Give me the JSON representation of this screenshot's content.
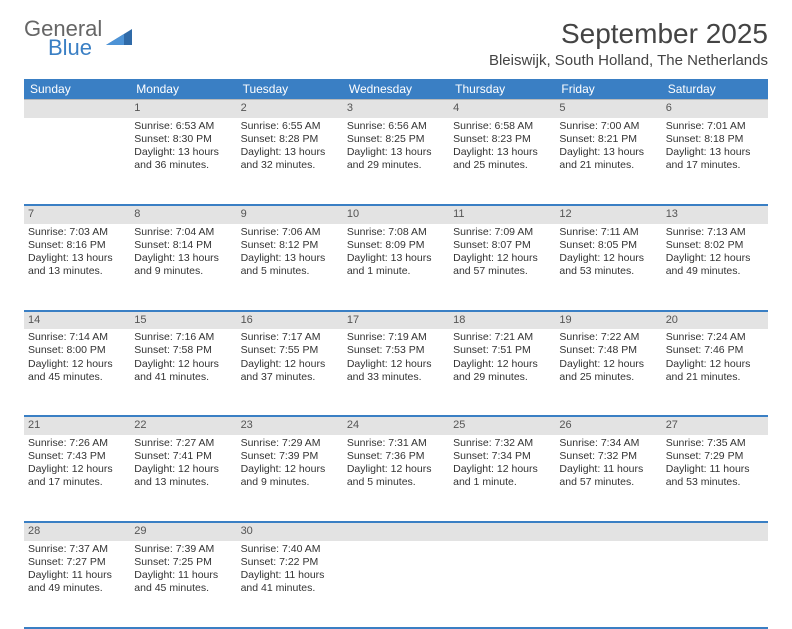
{
  "brand": {
    "line1": "General",
    "line2": "Blue",
    "color_gray": "#666666",
    "color_blue": "#3a7fc4"
  },
  "title": "September 2025",
  "location": "Bleiswijk, South Holland, The Netherlands",
  "theme": {
    "header_bg": "#3a7fc4",
    "header_text": "#ffffff",
    "daynum_bg": "#e3e3e3",
    "separator": "#3a7fc4",
    "page_bg": "#ffffff"
  },
  "day_headers": [
    "Sunday",
    "Monday",
    "Tuesday",
    "Wednesday",
    "Thursday",
    "Friday",
    "Saturday"
  ],
  "weeks": [
    {
      "nums": [
        "",
        "1",
        "2",
        "3",
        "4",
        "5",
        "6"
      ],
      "cells": [
        {},
        {
          "sunrise": "Sunrise: 6:53 AM",
          "sunset": "Sunset: 8:30 PM",
          "daylight": "Daylight: 13 hours and 36 minutes."
        },
        {
          "sunrise": "Sunrise: 6:55 AM",
          "sunset": "Sunset: 8:28 PM",
          "daylight": "Daylight: 13 hours and 32 minutes."
        },
        {
          "sunrise": "Sunrise: 6:56 AM",
          "sunset": "Sunset: 8:25 PM",
          "daylight": "Daylight: 13 hours and 29 minutes."
        },
        {
          "sunrise": "Sunrise: 6:58 AM",
          "sunset": "Sunset: 8:23 PM",
          "daylight": "Daylight: 13 hours and 25 minutes."
        },
        {
          "sunrise": "Sunrise: 7:00 AM",
          "sunset": "Sunset: 8:21 PM",
          "daylight": "Daylight: 13 hours and 21 minutes."
        },
        {
          "sunrise": "Sunrise: 7:01 AM",
          "sunset": "Sunset: 8:18 PM",
          "daylight": "Daylight: 13 hours and 17 minutes."
        }
      ]
    },
    {
      "nums": [
        "7",
        "8",
        "9",
        "10",
        "11",
        "12",
        "13"
      ],
      "cells": [
        {
          "sunrise": "Sunrise: 7:03 AM",
          "sunset": "Sunset: 8:16 PM",
          "daylight": "Daylight: 13 hours and 13 minutes."
        },
        {
          "sunrise": "Sunrise: 7:04 AM",
          "sunset": "Sunset: 8:14 PM",
          "daylight": "Daylight: 13 hours and 9 minutes."
        },
        {
          "sunrise": "Sunrise: 7:06 AM",
          "sunset": "Sunset: 8:12 PM",
          "daylight": "Daylight: 13 hours and 5 minutes."
        },
        {
          "sunrise": "Sunrise: 7:08 AM",
          "sunset": "Sunset: 8:09 PM",
          "daylight": "Daylight: 13 hours and 1 minute."
        },
        {
          "sunrise": "Sunrise: 7:09 AM",
          "sunset": "Sunset: 8:07 PM",
          "daylight": "Daylight: 12 hours and 57 minutes."
        },
        {
          "sunrise": "Sunrise: 7:11 AM",
          "sunset": "Sunset: 8:05 PM",
          "daylight": "Daylight: 12 hours and 53 minutes."
        },
        {
          "sunrise": "Sunrise: 7:13 AM",
          "sunset": "Sunset: 8:02 PM",
          "daylight": "Daylight: 12 hours and 49 minutes."
        }
      ]
    },
    {
      "nums": [
        "14",
        "15",
        "16",
        "17",
        "18",
        "19",
        "20"
      ],
      "cells": [
        {
          "sunrise": "Sunrise: 7:14 AM",
          "sunset": "Sunset: 8:00 PM",
          "daylight": "Daylight: 12 hours and 45 minutes."
        },
        {
          "sunrise": "Sunrise: 7:16 AM",
          "sunset": "Sunset: 7:58 PM",
          "daylight": "Daylight: 12 hours and 41 minutes."
        },
        {
          "sunrise": "Sunrise: 7:17 AM",
          "sunset": "Sunset: 7:55 PM",
          "daylight": "Daylight: 12 hours and 37 minutes."
        },
        {
          "sunrise": "Sunrise: 7:19 AM",
          "sunset": "Sunset: 7:53 PM",
          "daylight": "Daylight: 12 hours and 33 minutes."
        },
        {
          "sunrise": "Sunrise: 7:21 AM",
          "sunset": "Sunset: 7:51 PM",
          "daylight": "Daylight: 12 hours and 29 minutes."
        },
        {
          "sunrise": "Sunrise: 7:22 AM",
          "sunset": "Sunset: 7:48 PM",
          "daylight": "Daylight: 12 hours and 25 minutes."
        },
        {
          "sunrise": "Sunrise: 7:24 AM",
          "sunset": "Sunset: 7:46 PM",
          "daylight": "Daylight: 12 hours and 21 minutes."
        }
      ]
    },
    {
      "nums": [
        "21",
        "22",
        "23",
        "24",
        "25",
        "26",
        "27"
      ],
      "cells": [
        {
          "sunrise": "Sunrise: 7:26 AM",
          "sunset": "Sunset: 7:43 PM",
          "daylight": "Daylight: 12 hours and 17 minutes."
        },
        {
          "sunrise": "Sunrise: 7:27 AM",
          "sunset": "Sunset: 7:41 PM",
          "daylight": "Daylight: 12 hours and 13 minutes."
        },
        {
          "sunrise": "Sunrise: 7:29 AM",
          "sunset": "Sunset: 7:39 PM",
          "daylight": "Daylight: 12 hours and 9 minutes."
        },
        {
          "sunrise": "Sunrise: 7:31 AM",
          "sunset": "Sunset: 7:36 PM",
          "daylight": "Daylight: 12 hours and 5 minutes."
        },
        {
          "sunrise": "Sunrise: 7:32 AM",
          "sunset": "Sunset: 7:34 PM",
          "daylight": "Daylight: 12 hours and 1 minute."
        },
        {
          "sunrise": "Sunrise: 7:34 AM",
          "sunset": "Sunset: 7:32 PM",
          "daylight": "Daylight: 11 hours and 57 minutes."
        },
        {
          "sunrise": "Sunrise: 7:35 AM",
          "sunset": "Sunset: 7:29 PM",
          "daylight": "Daylight: 11 hours and 53 minutes."
        }
      ]
    },
    {
      "nums": [
        "28",
        "29",
        "30",
        "",
        "",
        "",
        ""
      ],
      "cells": [
        {
          "sunrise": "Sunrise: 7:37 AM",
          "sunset": "Sunset: 7:27 PM",
          "daylight": "Daylight: 11 hours and 49 minutes."
        },
        {
          "sunrise": "Sunrise: 7:39 AM",
          "sunset": "Sunset: 7:25 PM",
          "daylight": "Daylight: 11 hours and 45 minutes."
        },
        {
          "sunrise": "Sunrise: 7:40 AM",
          "sunset": "Sunset: 7:22 PM",
          "daylight": "Daylight: 11 hours and 41 minutes."
        },
        {},
        {},
        {},
        {}
      ]
    }
  ]
}
